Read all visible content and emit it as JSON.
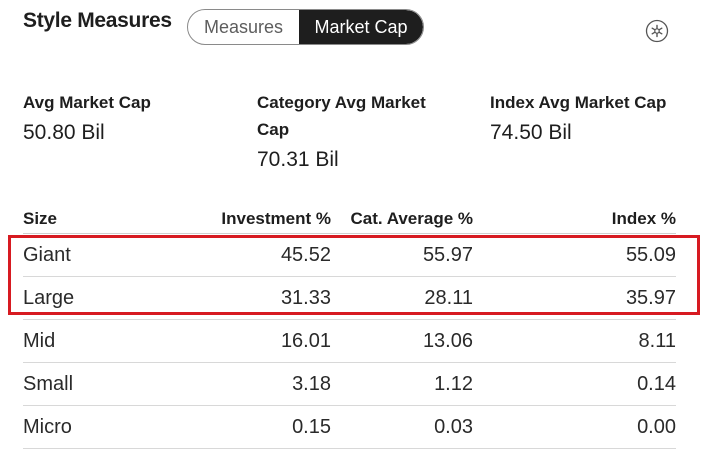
{
  "heading": "Style Measures",
  "toggle": {
    "options": [
      "Measures",
      "Market Cap"
    ],
    "selected": "Market Cap"
  },
  "settings_icon": "gear-icon",
  "stats": [
    {
      "label": "Avg Market Cap",
      "value": "50.80 Bil"
    },
    {
      "label": "Category Avg Market Cap",
      "value": "70.31 Bil"
    },
    {
      "label": "Index Avg Market Cap",
      "value": "74.50 Bil"
    }
  ],
  "table": {
    "headers": [
      "Size",
      "Investment %",
      "Cat. Average %",
      "Index %"
    ],
    "rows": [
      [
        "Giant",
        "45.52",
        "55.97",
        "55.09"
      ],
      [
        "Large",
        "31.33",
        "28.11",
        "35.97"
      ],
      [
        "Mid",
        "16.01",
        "13.06",
        "8.11"
      ],
      [
        "Small",
        "3.18",
        "1.12",
        "0.14"
      ],
      [
        "Micro",
        "0.15",
        "0.03",
        "0.00"
      ]
    ]
  },
  "highlight_color": "#d71a21",
  "accent_color": "#1e1e1e"
}
